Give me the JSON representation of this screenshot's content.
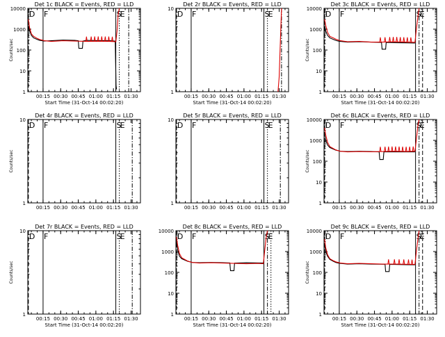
{
  "page_title": "",
  "colors": {
    "events": "#000000",
    "lld": "#dd0000",
    "axis": "#000000",
    "background": "#ffffff"
  },
  "chart_data": [
    {
      "type": "line",
      "panel": "1c",
      "title": "Det 1c BLACK = Events, RED = LLD",
      "xlabel": "Start Time (31-Oct-14 00:02:20)",
      "ylabel": "Counts/sec",
      "y_scale": "log",
      "ylim": [
        1,
        10000
      ],
      "xlim_min": [
        0,
        96
      ],
      "x_tick_labels": [
        "00:15",
        "00:30",
        "00:45",
        "01:00",
        "01:15",
        "01:30"
      ],
      "y_tick_labels": [
        "1",
        "10",
        "100",
        "1000",
        "10000"
      ],
      "markers": [
        {
          "label": "D",
          "x_min": 0.5,
          "style": "dashed"
        },
        {
          "label": "F",
          "x_min": 13,
          "style": "solid"
        },
        {
          "label": "S",
          "x_min": 75,
          "style": "solid"
        },
        {
          "label": "E",
          "x_min": 78,
          "style": "dotted"
        },
        {
          "label": "",
          "x_min": 86,
          "style": "dashdot"
        }
      ],
      "series": [
        {
          "role": "events",
          "x": [
            0.5,
            1.5,
            3,
            5,
            8,
            10,
            12,
            14,
            20,
            30,
            40,
            43,
            43.5,
            46.5,
            47,
            50,
            60,
            70,
            74.5,
            75.2,
            75.6
          ],
          "y": [
            1500,
            900,
            500,
            380,
            320,
            290,
            280,
            270,
            280,
            300,
            290,
            280,
            120,
            120,
            270,
            290,
            285,
            280,
            270,
            2,
            1.3
          ]
        },
        {
          "role": "lld",
          "x": [
            0.5,
            1.5,
            3,
            5,
            8,
            10,
            12,
            14,
            20,
            30,
            40,
            50,
            60,
            70,
            75,
            76,
            77,
            78
          ],
          "y": [
            3000,
            1200,
            600,
            450,
            360,
            320,
            300,
            280,
            260,
            280,
            270,
            260,
            265,
            260,
            250,
            800,
            5000,
            10000
          ],
          "spikes": [
            50,
            54,
            57,
            60,
            63,
            66,
            69,
            72
          ]
        }
      ]
    },
    {
      "type": "line",
      "panel": "2r",
      "title": "Det 2r BLACK = Events, RED = LLD",
      "xlabel": "Start Time (31-Oct-14 00:02:20)",
      "ylabel": "",
      "y_scale": "log",
      "ylim": [
        1,
        10
      ],
      "xlim_min": [
        0,
        96
      ],
      "x_tick_labels": [
        "00:15",
        "00:30",
        "00:45",
        "01:00",
        "01:15",
        "01:30"
      ],
      "y_tick_labels": [
        "1",
        "10"
      ],
      "markers": [
        {
          "label": "D",
          "x_min": 0.5,
          "style": "dashed"
        },
        {
          "label": "F",
          "x_min": 13,
          "style": "solid"
        },
        {
          "label": "S",
          "x_min": 75,
          "style": "solid"
        },
        {
          "label": "E",
          "x_min": 78,
          "style": "dotted"
        },
        {
          "label": "",
          "x_min": 90,
          "style": "dashdot"
        }
      ],
      "series": [
        {
          "role": "lld",
          "x": [
            87,
            88,
            89,
            90
          ],
          "y": [
            1,
            1.5,
            4,
            10
          ],
          "spikes": []
        }
      ]
    },
    {
      "type": "line",
      "panel": "3c",
      "title": "Det 3c BLACK = Events, RED = LLD",
      "xlabel": "Start Time (31-Oct-14 00:02:20)",
      "ylabel": "Counts/sec",
      "y_scale": "log",
      "ylim": [
        1,
        10000
      ],
      "xlim_min": [
        0,
        96
      ],
      "x_tick_labels": [
        "00:15",
        "00:30",
        "00:45",
        "01:00",
        "01:15",
        "01:30"
      ],
      "y_tick_labels": [
        "1",
        "10",
        "100",
        "1000",
        "10000"
      ],
      "markers": [
        {
          "label": "D",
          "x_min": 0.5,
          "style": "dashed"
        },
        {
          "label": "F",
          "x_min": 13,
          "style": "solid"
        },
        {
          "label": "S",
          "x_min": 78,
          "style": "solid"
        },
        {
          "label": "E",
          "x_min": 81,
          "style": "dashdot"
        },
        {
          "label": "",
          "x_min": 84,
          "style": "dashed"
        }
      ],
      "series": [
        {
          "role": "events",
          "x": [
            0.5,
            1.5,
            3,
            5,
            8,
            10,
            12,
            14,
            20,
            30,
            40,
            49,
            49.5,
            52.5,
            53,
            60,
            70,
            77.5
          ],
          "y": [
            1500,
            800,
            500,
            380,
            320,
            290,
            270,
            260,
            240,
            250,
            240,
            230,
            110,
            110,
            230,
            225,
            220,
            215
          ]
        },
        {
          "role": "lld",
          "x": [
            0.5,
            1.5,
            3,
            5,
            8,
            10,
            12,
            14,
            20,
            30,
            40,
            50,
            60,
            70,
            77.5,
            78.5,
            80,
            81
          ],
          "y": [
            3000,
            1500,
            700,
            450,
            380,
            330,
            300,
            280,
            250,
            260,
            240,
            240,
            250,
            240,
            235,
            800,
            4000,
            10000
          ],
          "spikes": [
            48,
            52,
            56,
            59,
            62,
            65,
            68,
            71,
            74
          ]
        }
      ]
    },
    {
      "type": "line",
      "panel": "4r",
      "title": "Det 4r BLACK = Events, RED = LLD",
      "xlabel": "",
      "ylabel": "Counts/sec",
      "y_scale": "log",
      "ylim": [
        1,
        10
      ],
      "xlim_min": [
        0,
        96
      ],
      "x_tick_labels": [
        "00:15",
        "00:30",
        "00:45",
        "01:00",
        "01:15",
        "01:30"
      ],
      "y_tick_labels": [
        "1",
        "10"
      ],
      "markers": [
        {
          "label": "D",
          "x_min": 0.5,
          "style": "dashed"
        },
        {
          "label": "F",
          "x_min": 13,
          "style": "solid"
        },
        {
          "label": "S",
          "x_min": 75,
          "style": "solid"
        },
        {
          "label": "E",
          "x_min": 78,
          "style": "dotted"
        },
        {
          "label": "",
          "x_min": 89,
          "style": "dashdot"
        }
      ],
      "series": []
    },
    {
      "type": "line",
      "panel": "5r",
      "title": "Det 5r BLACK = Events, RED = LLD",
      "xlabel": "",
      "ylabel": "",
      "y_scale": "log",
      "ylim": [
        1,
        10
      ],
      "xlim_min": [
        0,
        96
      ],
      "x_tick_labels": [
        "00:15",
        "00:30",
        "00:45",
        "01:00",
        "01:15",
        "01:30"
      ],
      "y_tick_labels": [
        "1",
        "10"
      ],
      "markers": [
        {
          "label": "D",
          "x_min": 0.5,
          "style": "dashed"
        },
        {
          "label": "F",
          "x_min": 13,
          "style": "solid"
        },
        {
          "label": "S",
          "x_min": 75,
          "style": "solid"
        },
        {
          "label": "E",
          "x_min": 78,
          "style": "dotted"
        },
        {
          "label": "",
          "x_min": 89,
          "style": "dashdot"
        }
      ],
      "series": []
    },
    {
      "type": "line",
      "panel": "6c",
      "title": "Det 6c BLACK = Events, RED = LLD",
      "xlabel": "",
      "ylabel": "Counts/sec",
      "y_scale": "log",
      "ylim": [
        1,
        10000
      ],
      "xlim_min": [
        0,
        96
      ],
      "x_tick_labels": [
        "00:15",
        "00:30",
        "00:45",
        "01:00",
        "01:15",
        "01:30"
      ],
      "y_tick_labels": [
        "1",
        "10",
        "100",
        "1000",
        "10000"
      ],
      "markers": [
        {
          "label": "D",
          "x_min": 0.5,
          "style": "dashed"
        },
        {
          "label": "F",
          "x_min": 13,
          "style": "solid"
        },
        {
          "label": "S",
          "x_min": 78,
          "style": "solid"
        },
        {
          "label": "E",
          "x_min": 81,
          "style": "dashdot"
        },
        {
          "label": "",
          "x_min": 84,
          "style": "dashed"
        }
      ],
      "series": [
        {
          "role": "events",
          "x": [
            0.5,
            1.5,
            3,
            5,
            8,
            10,
            12,
            14,
            20,
            30,
            40,
            47,
            47.5,
            50.5,
            51,
            60,
            70,
            77.5
          ],
          "y": [
            2000,
            1000,
            600,
            450,
            380,
            340,
            320,
            300,
            290,
            300,
            290,
            280,
            120,
            120,
            280,
            285,
            280,
            280
          ]
        },
        {
          "role": "lld",
          "x": [
            0.5,
            1.5,
            3,
            5,
            8,
            10,
            12,
            14,
            20,
            30,
            40,
            50,
            60,
            70,
            77.5,
            78.5,
            80,
            81
          ],
          "y": [
            4000,
            1800,
            800,
            500,
            400,
            350,
            320,
            300,
            280,
            290,
            285,
            290,
            300,
            290,
            300,
            900,
            5000,
            10000
          ],
          "spikes": [
            48,
            52,
            55,
            58,
            61,
            64,
            67,
            70,
            73,
            76
          ]
        }
      ]
    },
    {
      "type": "line",
      "panel": "7r",
      "title": "Det 7r BLACK = Events, RED = LLD",
      "xlabel": "Start Time (31-Oct-14 00:02:20)",
      "ylabel": "Counts/sec",
      "y_scale": "log",
      "ylim": [
        1,
        10
      ],
      "xlim_min": [
        0,
        96
      ],
      "x_tick_labels": [
        "00:15",
        "00:30",
        "00:45",
        "01:00",
        "01:15",
        "01:30"
      ],
      "y_tick_labels": [
        "1",
        "10"
      ],
      "markers": [
        {
          "label": "D",
          "x_min": 0.5,
          "style": "dashed"
        },
        {
          "label": "F",
          "x_min": 13,
          "style": "solid"
        },
        {
          "label": "S",
          "x_min": 75,
          "style": "solid"
        },
        {
          "label": "E",
          "x_min": 78,
          "style": "dotted"
        },
        {
          "label": "",
          "x_min": 89,
          "style": "dashdot"
        }
      ],
      "series": []
    },
    {
      "type": "line",
      "panel": "8c",
      "title": "Det 8c BLACK = Events, RED = LLD",
      "xlabel": "Start Time (31-Oct-14 00:02:20)",
      "ylabel": "",
      "y_scale": "log",
      "ylim": [
        1,
        10000
      ],
      "xlim_min": [
        0,
        96
      ],
      "x_tick_labels": [
        "00:15",
        "00:30",
        "00:45",
        "01:00",
        "01:15",
        "01:30"
      ],
      "y_tick_labels": [
        "1",
        "10",
        "100",
        "1000",
        "10000"
      ],
      "markers": [
        {
          "label": "D",
          "x_min": 0.5,
          "style": "dashed"
        },
        {
          "label": "F",
          "x_min": 13,
          "style": "solid"
        },
        {
          "label": "S",
          "x_min": 75,
          "style": "solid"
        },
        {
          "label": "E",
          "x_min": 78,
          "style": "dashdot"
        },
        {
          "label": "",
          "x_min": 81,
          "style": "dotted"
        }
      ],
      "series": [
        {
          "role": "events",
          "x": [
            0.5,
            1.5,
            3,
            5,
            8,
            10,
            12,
            14,
            20,
            30,
            40,
            46,
            46.5,
            49.5,
            50,
            60,
            70,
            74.5
          ],
          "y": [
            3000,
            1200,
            600,
            450,
            380,
            340,
            320,
            300,
            290,
            300,
            290,
            285,
            120,
            120,
            280,
            290,
            285,
            280
          ]
        },
        {
          "role": "lld",
          "x": [
            0.5,
            1.5,
            3,
            5,
            8,
            10,
            12,
            14,
            20,
            30,
            40,
            50,
            60,
            70,
            74.5,
            75.5,
            77,
            78
          ],
          "y": [
            5000,
            2000,
            800,
            500,
            400,
            350,
            320,
            300,
            280,
            290,
            280,
            270,
            260,
            270,
            260,
            900,
            5000,
            10000
          ],
          "spikes": []
        }
      ]
    },
    {
      "type": "line",
      "panel": "9c",
      "title": "Det 9c BLACK = Events, RED = LLD",
      "xlabel": "Start Time (31-Oct-14 00:02:20)",
      "ylabel": "Counts/sec",
      "y_scale": "log",
      "ylim": [
        1,
        10000
      ],
      "xlim_min": [
        0,
        96
      ],
      "x_tick_labels": [
        "00:15",
        "00:30",
        "00:45",
        "01:00",
        "01:15",
        "01:30"
      ],
      "y_tick_labels": [
        "1",
        "10",
        "100",
        "1000",
        "10000"
      ],
      "markers": [
        {
          "label": "D",
          "x_min": 0.5,
          "style": "dashed"
        },
        {
          "label": "F",
          "x_min": 13,
          "style": "solid"
        },
        {
          "label": "S",
          "x_min": 78,
          "style": "solid"
        },
        {
          "label": "E",
          "x_min": 81,
          "style": "dashdot"
        },
        {
          "label": "",
          "x_min": 84,
          "style": "dashed"
        }
      ],
      "series": [
        {
          "role": "events",
          "x": [
            0.5,
            1.5,
            3,
            5,
            8,
            10,
            12,
            14,
            20,
            30,
            40,
            52,
            52.5,
            55.5,
            56,
            60,
            70,
            77.5
          ],
          "y": [
            2000,
            1000,
            600,
            420,
            340,
            300,
            280,
            270,
            250,
            260,
            250,
            245,
            110,
            110,
            240,
            240,
            235,
            230
          ]
        },
        {
          "role": "lld",
          "x": [
            0.5,
            1.5,
            3,
            5,
            8,
            10,
            12,
            14,
            20,
            30,
            40,
            50,
            60,
            70,
            77.5,
            78.5,
            80,
            81
          ],
          "y": [
            4000,
            1500,
            700,
            450,
            360,
            320,
            300,
            280,
            260,
            270,
            260,
            250,
            250,
            245,
            240,
            800,
            4000,
            10000
          ],
          "spikes": [
            55,
            60,
            64,
            68,
            72,
            75
          ]
        }
      ]
    }
  ]
}
